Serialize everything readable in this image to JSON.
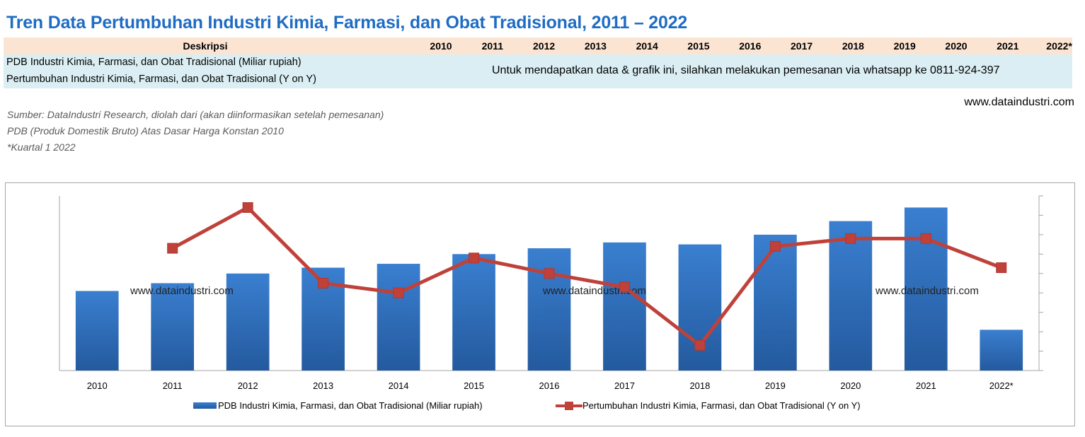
{
  "title": "Tren Data Pertumbuhan Industri Kimia, Farmasi, dan Obat Tradisional, 2011 – 2022",
  "table": {
    "header_desc": "Deskripsi",
    "years": [
      "2010",
      "2011",
      "2012",
      "2013",
      "2014",
      "2015",
      "2016",
      "2017",
      "2018",
      "2019",
      "2020",
      "2021",
      "2022*"
    ],
    "rows": [
      "PDB Industri Kimia, Farmasi, dan Obat Tradisional (Miliar rupiah)",
      "Pertumbuhan Industri  Kimia, Farmasi, dan Obat Tradisional (Y on Y)"
    ],
    "notice": "Untuk mendapatkan data & grafik ini, silahkan melakukan pemesanan via whatsapp ke 0811-924-397"
  },
  "website": "www.dataindustri.com",
  "notes": [
    "Sumber: DataIndustri Research, diolah dari (akan diinformasikan setelah pemesanan)",
    "PDB (Produk Domestik Bruto) Atas Dasar Harga Konstan 2010",
    "*Kuartal 1 2022"
  ],
  "colors": {
    "title": "#1f6cc4",
    "bar": "#2e6fba",
    "line": "#c0413a",
    "header_bg": "#fce4d3",
    "body_bg": "#daeef3"
  },
  "chart_data": {
    "type": "bar+line",
    "categories": [
      "2010",
      "2011",
      "2012",
      "2013",
      "2014",
      "2015",
      "2016",
      "2017",
      "2018",
      "2019",
      "2020",
      "2021",
      "2022*"
    ],
    "series": [
      {
        "name": "PDB Industri Kimia, Farmasi, dan Obat Tradisional (Miliar rupiah)",
        "type": "bar",
        "axis": "right",
        "values": [
          41,
          45,
          50,
          53,
          55,
          60,
          63,
          66,
          65,
          70,
          77,
          84,
          21
        ]
      },
      {
        "name": "Pertumbuhan Industri  Kimia, Farmasi, dan Obat Tradisional (Y on Y)",
        "type": "line",
        "axis": "left",
        "values": [
          null,
          63,
          84,
          45,
          40,
          58,
          50,
          43,
          13,
          64,
          68,
          68,
          53
        ]
      }
    ],
    "ylim_bar": [
      0,
      90
    ],
    "ylim_line": [
      0,
      90
    ],
    "watermarks": [
      "www.dataindustri.com",
      "www.dataindustri.com",
      "www.dataindustri.com"
    ],
    "legend_position": "bottom"
  }
}
